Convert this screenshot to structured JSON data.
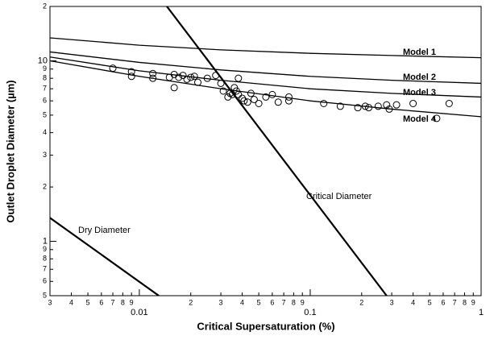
{
  "chart_data": {
    "type": "line",
    "xlabel": "Critical Supersaturation (%)",
    "ylabel": "Outlet Droplet Diameter (µm)",
    "xscale": "log",
    "yscale": "log",
    "xlim": [
      0.003,
      1
    ],
    "ylim": [
      0.5,
      20
    ],
    "xticks": [
      {
        "value": 0.003,
        "label": "3"
      },
      {
        "value": 0.004,
        "label": "4"
      },
      {
        "value": 0.005,
        "label": "5"
      },
      {
        "value": 0.006,
        "label": "6"
      },
      {
        "value": 0.007,
        "label": "7"
      },
      {
        "value": 0.008,
        "label": "8"
      },
      {
        "value": 0.009,
        "label": "9"
      },
      0.01,
      {
        "value": 0.02,
        "label": "2"
      },
      {
        "value": 0.03,
        "label": "3"
      },
      {
        "value": 0.04,
        "label": "4"
      },
      {
        "value": 0.05,
        "label": "5"
      },
      {
        "value": 0.06,
        "label": "6"
      },
      {
        "value": 0.07,
        "label": "7"
      },
      {
        "value": 0.08,
        "label": "8"
      },
      {
        "value": 0.09,
        "label": "9"
      },
      0.1,
      {
        "value": 0.2,
        "label": "2"
      },
      {
        "value": 0.3,
        "label": "3"
      },
      {
        "value": 0.4,
        "label": "4"
      },
      {
        "value": 0.5,
        "label": "5"
      },
      {
        "value": 0.6,
        "label": "6"
      },
      {
        "value": 0.7,
        "label": "7"
      },
      {
        "value": 0.8,
        "label": "8"
      },
      {
        "value": 0.9,
        "label": "9"
      },
      1
    ],
    "yticks": [
      {
        "value": 0.5,
        "label": "5"
      },
      {
        "value": 0.6,
        "label": "6"
      },
      {
        "value": 0.7,
        "label": "7"
      },
      {
        "value": 0.8,
        "label": "8"
      },
      {
        "value": 0.9,
        "label": "9"
      },
      1,
      2,
      3,
      4,
      5,
      6,
      7,
      8,
      9,
      10,
      {
        "value": 20,
        "label": "2"
      }
    ],
    "series": [
      {
        "name": "Model 1",
        "color": "#000000",
        "x": [
          0.003,
          0.01,
          0.03,
          0.1,
          0.3,
          1
        ],
        "values": [
          13.4,
          12.2,
          11.5,
          11.0,
          10.7,
          10.4
        ]
      },
      {
        "name": "Model 2",
        "color": "#000000",
        "x": [
          0.003,
          0.01,
          0.03,
          0.1,
          0.3,
          1
        ],
        "values": [
          11.2,
          9.8,
          8.9,
          8.2,
          7.8,
          7.5
        ]
      },
      {
        "name": "Model 3",
        "color": "#000000",
        "x": [
          0.003,
          0.01,
          0.03,
          0.1,
          0.3,
          1
        ],
        "values": [
          10.5,
          8.8,
          7.8,
          7.0,
          6.6,
          6.3
        ]
      },
      {
        "name": "Model 4",
        "color": "#000000",
        "x": [
          0.003,
          0.01,
          0.03,
          0.1,
          0.3,
          1
        ],
        "values": [
          10.0,
          8.2,
          7.0,
          6.0,
          5.4,
          4.9
        ]
      },
      {
        "name": "Critical Diameter",
        "color": "#000000",
        "x": [
          0.0145,
          0.28
        ],
        "values": [
          20,
          0.5
        ]
      },
      {
        "name": "Dry Diameter",
        "color": "#000000",
        "x": [
          0.003,
          0.013
        ],
        "values": [
          1.35,
          0.5
        ]
      },
      {
        "type": "scatter",
        "color": "#000000",
        "x": [
          0.007,
          0.009,
          0.009,
          0.012,
          0.012,
          0.015,
          0.016,
          0.016,
          0.017,
          0.018,
          0.019,
          0.02,
          0.021,
          0.022,
          0.025,
          0.028,
          0.03,
          0.031,
          0.033,
          0.034,
          0.035,
          0.036,
          0.037,
          0.038,
          0.038,
          0.04,
          0.041,
          0.043,
          0.045,
          0.047,
          0.05,
          0.055,
          0.06,
          0.065,
          0.075,
          0.075,
          0.12,
          0.15,
          0.19,
          0.21,
          0.22,
          0.25,
          0.28,
          0.29,
          0.32,
          0.4,
          0.55,
          0.65
        ],
        "values": [
          9.1,
          8.7,
          8.2,
          8.5,
          8.0,
          8.1,
          8.4,
          7.1,
          8.1,
          8.3,
          7.9,
          8.1,
          8.2,
          7.6,
          8.0,
          8.3,
          7.5,
          6.8,
          6.3,
          6.6,
          6.5,
          7.1,
          6.8,
          6.5,
          8.0,
          6.2,
          6.0,
          5.9,
          6.6,
          6.1,
          5.8,
          6.3,
          6.5,
          5.9,
          6.0,
          6.3,
          5.8,
          5.6,
          5.5,
          5.6,
          5.5,
          5.6,
          5.7,
          5.4,
          5.7,
          5.8,
          4.8,
          5.8
        ]
      }
    ]
  }
}
